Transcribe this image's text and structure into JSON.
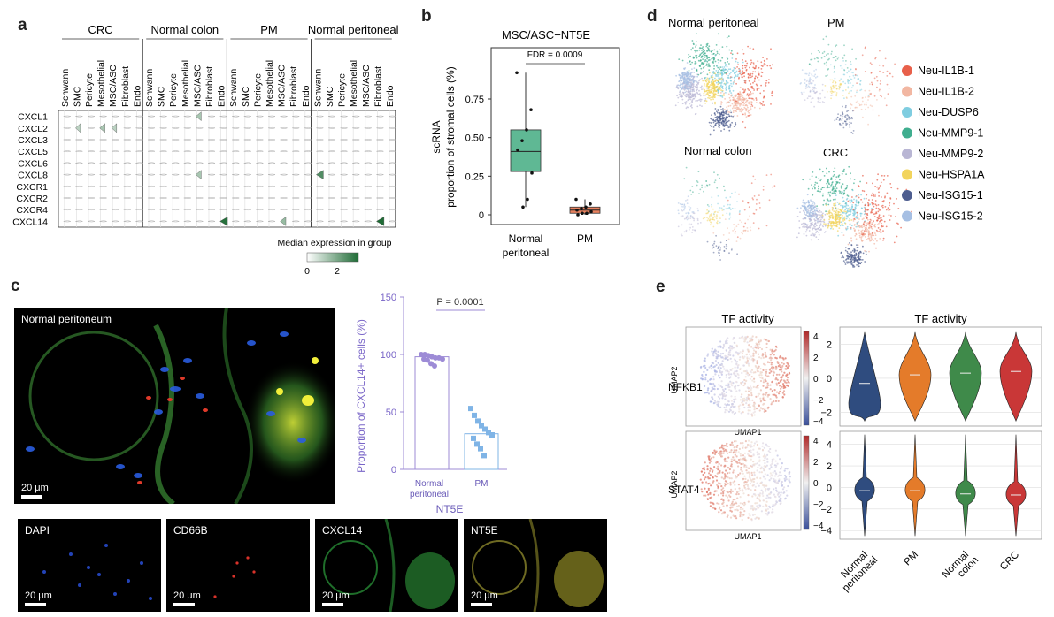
{
  "panels": {
    "a": "a",
    "b": "b",
    "c": "c",
    "d": "d",
    "e": "e"
  },
  "panel_a": {
    "groups": [
      "CRC",
      "Normal colon",
      "PM",
      "Normal peritoneal"
    ],
    "cell_types": [
      "Schwann",
      "SMC",
      "Pericyte",
      "Mesothelial",
      "MSC/ASC",
      "Fibroblast",
      "Endo"
    ],
    "genes": [
      "CXCL1",
      "CXCL2",
      "CXCL3",
      "CXCL5",
      "CXCL6",
      "CXCL8",
      "CXCR1",
      "CXCR2",
      "CXCR4",
      "CXCL14"
    ],
    "colorbar_title": "Median expression in group",
    "colorbar_ticks": [
      "0",
      "2"
    ],
    "colors": {
      "low": "#ffffff",
      "high": "#1e6b35"
    }
  },
  "panel_b": {
    "title": "MSC/ASC−NT5E",
    "ylabel_line1": "scRNA",
    "ylabel_line2": "proportion of stromal cells (%)",
    "yticks": [
      "0",
      "0.25",
      "0.50",
      "0.75"
    ],
    "annotation": "FDR = 0.0009",
    "categories": [
      "Normal\nperitoneal",
      "PM"
    ],
    "cat_line1": [
      "Normal",
      "PM"
    ],
    "cat_line2": [
      "peritoneal",
      ""
    ],
    "colors": {
      "normal": "#5fb894",
      "pm": "#e8825f"
    }
  },
  "panel_c": {
    "main_label": "Normal peritoneum",
    "scale": "20 μm",
    "ylabel": "Proportion of CXCL14+ cells (%)",
    "yticks": [
      "0",
      "50",
      "100",
      "150"
    ],
    "pvalue": "P = 0.0001",
    "categories_line1": [
      "Normal",
      "PM"
    ],
    "categories_line2": [
      "peritoneal",
      ""
    ],
    "xlabel": "NT5E",
    "channels": [
      "DAPI",
      "CD66B",
      "CXCL14",
      "NT5E"
    ],
    "colors": {
      "normal": "#9d8bd6",
      "pm": "#7fb4e6"
    }
  },
  "panel_d": {
    "titles": [
      "Normal peritoneal",
      "PM",
      "Normal colon",
      "CRC"
    ],
    "legend": [
      {
        "label": "Neu-IL1B-1",
        "color": "#e8604a"
      },
      {
        "label": "Neu-IL1B-2",
        "color": "#f2b7a2"
      },
      {
        "label": "Neu-DUSP6",
        "color": "#7fcde0"
      },
      {
        "label": "Neu-MMP9-1",
        "color": "#3fae8f"
      },
      {
        "label": "Neu-MMP9-2",
        "color": "#b9b6d4"
      },
      {
        "label": "Neu-HSPA1A",
        "color": "#f2d45c"
      },
      {
        "label": "Neu-ISG15-1",
        "color": "#4d5d8f"
      },
      {
        "label": "Neu-ISG15-2",
        "color": "#a6bfe3"
      }
    ]
  },
  "panel_e": {
    "umap_title": "TF activity",
    "violin_title": "TF activity",
    "rows": [
      "NFKB1",
      "STAT4"
    ],
    "umap_xlabel": "UMAP1",
    "umap_ylabel": "UMAP2",
    "cbar_ticks": [
      "4",
      "2",
      "0",
      "−2",
      "−4"
    ],
    "v1_yticks": [
      "2",
      "0",
      "−2"
    ],
    "v2_yticks": [
      "4",
      "2",
      "0",
      "−2",
      "−4"
    ],
    "categories": [
      "Normal peritoneal",
      "PM",
      "Normal colon",
      "CRC"
    ],
    "cat_line1": [
      "Normal",
      "PM",
      "Normal",
      "CRC"
    ],
    "cat_line2": [
      "peritoneal",
      "",
      "colon",
      ""
    ],
    "colors": [
      "#2f4c7f",
      "#e47b2a",
      "#3f8a4a",
      "#c93737"
    ]
  },
  "chart_data": [
    {
      "type": "box",
      "title": "MSC/ASC−NT5E",
      "ylabel": "scRNA proportion of stromal cells (%)",
      "ylim": [
        0,
        0.9
      ],
      "categories": [
        "Normal peritoneal",
        "PM"
      ],
      "box": [
        {
          "q1": 0.28,
          "median": 0.41,
          "q3": 0.55,
          "min": 0.05,
          "max": 0.92
        },
        {
          "q1": 0.01,
          "median": 0.03,
          "q3": 0.05,
          "min": 0.0,
          "max": 0.1
        }
      ],
      "points": [
        [
          0.92,
          0.68,
          0.55,
          0.48,
          0.42,
          0.27,
          0.1,
          0.05
        ],
        [
          0.1,
          0.07,
          0.05,
          0.04,
          0.03,
          0.02,
          0.01,
          0.01,
          0.0
        ]
      ],
      "annotation": "FDR = 0.0009"
    },
    {
      "type": "bar",
      "ylabel": "Proportion of CXCL14+ cells (%)",
      "ylim": [
        0,
        150
      ],
      "categories": [
        "Normal peritoneal",
        "PM"
      ],
      "values": [
        98,
        31
      ],
      "points": [
        [
          100,
          100,
          99,
          98,
          97,
          97,
          96,
          96,
          95,
          92,
          90
        ],
        [
          53,
          47,
          42,
          38,
          35,
          32,
          30,
          27,
          22,
          18,
          12
        ]
      ],
      "annotation": "P = 0.0001"
    },
    {
      "type": "heatmap",
      "note": "Stacked violin plot of chemokine expression by stromal cell type",
      "groups": [
        "CRC",
        "Normal colon",
        "PM",
        "Normal peritoneal"
      ],
      "cell_types": [
        "Schwann",
        "SMC",
        "Pericyte",
        "Mesothelial",
        "MSC/ASC",
        "Fibroblast",
        "Endo"
      ],
      "genes": [
        "CXCL1",
        "CXCL2",
        "CXCL3",
        "CXCL5",
        "CXCL6",
        "CXCL8",
        "CXCR1",
        "CXCR2",
        "CXCR4",
        "CXCL14"
      ],
      "high_cells": [
        {
          "group": "CRC",
          "gene": "CXCL2",
          "cell": "SMC",
          "value": 0.8
        },
        {
          "group": "CRC",
          "gene": "CXCL2",
          "cell": "Mesothelial",
          "value": 1.0
        },
        {
          "group": "CRC",
          "gene": "CXCL2",
          "cell": "MSC/ASC",
          "value": 0.8
        },
        {
          "group": "Normal colon",
          "gene": "CXCL1",
          "cell": "MSC/ASC",
          "value": 1.0
        },
        {
          "group": "Normal colon",
          "gene": "CXCL8",
          "cell": "MSC/ASC",
          "value": 1.0
        },
        {
          "group": "Normal colon",
          "gene": "CXCL14",
          "cell": "Endo",
          "value": 2.5
        },
        {
          "group": "PM",
          "gene": "CXCL14",
          "cell": "MSC/ASC",
          "value": 1.2
        },
        {
          "group": "Normal peritoneal",
          "gene": "CXCL8",
          "cell": "Schwann",
          "value": 2.0
        },
        {
          "group": "Normal peritoneal",
          "gene": "CXCL14",
          "cell": "Fibroblast",
          "value": 2.6
        }
      ]
    },
    {
      "type": "violin",
      "ylabel": "TF activity",
      "categories": [
        "Normal peritoneal",
        "PM",
        "Normal colon",
        "CRC"
      ],
      "series": [
        {
          "name": "NFKB1",
          "ylim": [
            -2.6,
            3
          ],
          "medians": [
            -0.3,
            0.2,
            0.3,
            0.4
          ]
        },
        {
          "name": "STAT4",
          "ylim": [
            -4.5,
            5
          ],
          "medians": [
            -0.3,
            -0.3,
            -0.6,
            -0.7
          ]
        }
      ]
    }
  ]
}
